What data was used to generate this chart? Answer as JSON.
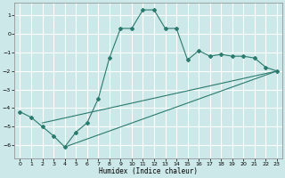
{
  "xlabel": "Humidex (Indice chaleur)",
  "bg_color": "#cce8e8",
  "grid_color": "#ffffff",
  "line_color": "#2a7a6e",
  "xlim": [
    -0.5,
    23.5
  ],
  "ylim": [
    -6.7,
    1.7
  ],
  "xticks": [
    0,
    1,
    2,
    3,
    4,
    5,
    6,
    7,
    8,
    9,
    10,
    11,
    12,
    13,
    14,
    15,
    16,
    17,
    18,
    19,
    20,
    21,
    22,
    23
  ],
  "yticks": [
    -6,
    -5,
    -4,
    -3,
    -2,
    -1,
    0,
    1
  ],
  "line1_x": [
    0,
    1,
    2,
    3,
    4,
    5,
    6,
    7,
    8,
    9,
    10,
    11,
    12,
    13,
    14,
    15,
    16,
    17,
    18,
    19,
    20,
    21,
    22,
    23
  ],
  "line1_y": [
    -4.2,
    -4.5,
    -5.0,
    -5.5,
    -6.1,
    -5.3,
    -4.8,
    -3.5,
    -1.3,
    0.3,
    0.3,
    1.3,
    1.3,
    0.3,
    0.3,
    -1.4,
    -0.9,
    -1.2,
    -1.1,
    -1.2,
    -1.2,
    -1.3,
    -1.8,
    -2.0
  ],
  "line2_x": [
    2,
    23
  ],
  "line2_y": [
    -4.8,
    -2.0
  ],
  "line3_x": [
    4,
    23
  ],
  "line3_y": [
    -6.1,
    -2.0
  ]
}
